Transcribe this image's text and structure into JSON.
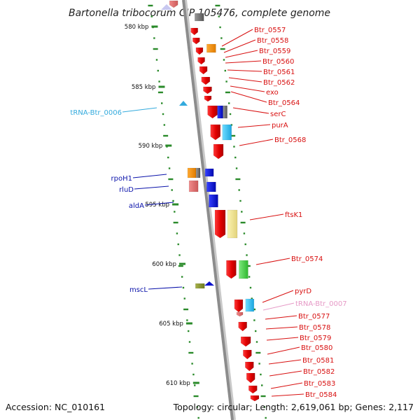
{
  "title": "Bartonella tribocorum CIP 105476, complete genome",
  "footer": {
    "accession": "Accession: NC_010161",
    "topology": "Topology: circular; Length: 2,619,061 bp; Genes: 2,117"
  },
  "colors": {
    "backbone": "#8c8c8c",
    "gene": "#ee1111",
    "tick": "#2a8a2a",
    "trna": "#33aadd",
    "blue": "#0a12cc",
    "pink_trna": "#e699c6"
  },
  "kbp_marks": [
    "580 kbp",
    "585 kbp",
    "590 kbp",
    "595 kbp",
    "600 kbp",
    "605 kbp",
    "610 kbp"
  ],
  "right_labels": [
    {
      "text": "Btr_0557",
      "color": "#d81010"
    },
    {
      "text": "Btr_0558",
      "color": "#d81010"
    },
    {
      "text": "Btr_0559",
      "color": "#d81010"
    },
    {
      "text": "Btr_0560",
      "color": "#d81010"
    },
    {
      "text": "Btr_0561",
      "color": "#d81010"
    },
    {
      "text": "Btr_0562",
      "color": "#d81010"
    },
    {
      "text": "exo",
      "color": "#d81010"
    },
    {
      "text": "Btr_0564",
      "color": "#d81010"
    },
    {
      "text": "serC",
      "color": "#d81010"
    },
    {
      "text": "purA",
      "color": "#d81010"
    },
    {
      "text": "Btr_0568",
      "color": "#d81010"
    },
    {
      "text": "ftsK1",
      "color": "#d81010"
    },
    {
      "text": "Btr_0574",
      "color": "#d81010"
    },
    {
      "text": "pyrD",
      "color": "#d81010"
    },
    {
      "text": "tRNA-Btr_0007",
      "color": "#e699c6"
    },
    {
      "text": "Btr_0577",
      "color": "#d81010"
    },
    {
      "text": "Btr_0578",
      "color": "#d81010"
    },
    {
      "text": "Btr_0579",
      "color": "#d81010"
    },
    {
      "text": "Btr_0580",
      "color": "#d81010"
    },
    {
      "text": "Btr_0581",
      "color": "#d81010"
    },
    {
      "text": "Btr_0582",
      "color": "#d81010"
    },
    {
      "text": "Btr_0583",
      "color": "#d81010"
    },
    {
      "text": "Btr_0584",
      "color": "#d81010"
    }
  ],
  "left_labels": [
    {
      "text": "tRNA-Btr_0006",
      "color": "#33aadd"
    },
    {
      "text": "rpoH1",
      "color": "#0a12aa"
    },
    {
      "text": "rluD",
      "color": "#0a12aa"
    },
    {
      "text": "aldA",
      "color": "#0a12aa"
    },
    {
      "text": "mscL",
      "color": "#0a12aa"
    }
  ]
}
